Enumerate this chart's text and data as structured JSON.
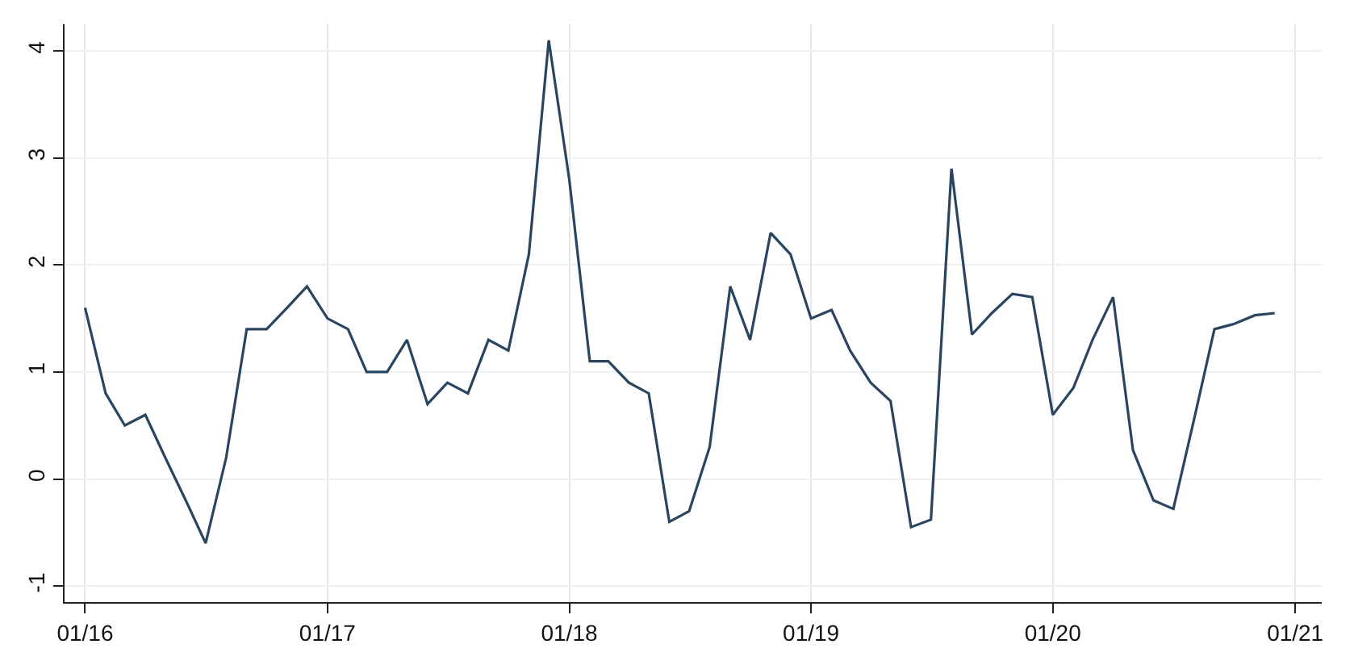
{
  "chart_data": {
    "type": "line",
    "x": [
      "2016-01",
      "2016-02",
      "2016-03",
      "2016-04",
      "2016-05",
      "2016-06",
      "2016-07",
      "2016-08",
      "2016-09",
      "2016-10",
      "2016-11",
      "2016-12",
      "2017-01",
      "2017-02",
      "2017-03",
      "2017-04",
      "2017-05",
      "2017-06",
      "2017-07",
      "2017-08",
      "2017-09",
      "2017-10",
      "2017-11",
      "2017-12",
      "2018-01",
      "2018-02",
      "2018-03",
      "2018-04",
      "2018-05",
      "2018-06",
      "2018-07",
      "2018-08",
      "2018-09",
      "2018-10",
      "2018-11",
      "2018-12",
      "2019-01",
      "2019-02",
      "2019-03",
      "2019-04",
      "2019-05",
      "2019-06",
      "2019-07",
      "2019-08",
      "2019-09",
      "2019-10",
      "2019-11",
      "2019-12",
      "2020-01",
      "2020-02",
      "2020-03",
      "2020-04",
      "2020-05",
      "2020-06",
      "2020-07",
      "2020-08",
      "2020-09",
      "2020-10",
      "2020-11",
      "2020-12"
    ],
    "series": [
      {
        "color": "#2a4560",
        "values": [
          1.6,
          0.8,
          0.5,
          0.6,
          0.2,
          -0.2,
          -0.6,
          0.2,
          1.4,
          1.4,
          1.6,
          1.8,
          1.5,
          1.4,
          1.0,
          1.0,
          1.3,
          0.7,
          0.9,
          0.8,
          1.3,
          1.2,
          2.1,
          4.1,
          2.8,
          1.1,
          1.1,
          0.9,
          0.8,
          -0.4,
          -0.3,
          0.3,
          1.8,
          1.3,
          2.3,
          2.1,
          1.5,
          1.58,
          1.2,
          0.9,
          0.73,
          -0.45,
          -0.38,
          2.9,
          1.35,
          1.55,
          1.73,
          1.7,
          0.6,
          0.85,
          1.3,
          1.7,
          0.27,
          -0.2,
          -0.28,
          0.55,
          1.4,
          1.45,
          1.53,
          1.55
        ]
      }
    ],
    "xlim": [
      "2015-12-01",
      "2021-02-10"
    ],
    "xticks": [
      {
        "value": "2016-01",
        "label": "01/16"
      },
      {
        "value": "2017-01",
        "label": "01/17"
      },
      {
        "value": "2018-01",
        "label": "01/18"
      },
      {
        "value": "2019-01",
        "label": "01/19"
      },
      {
        "value": "2020-01",
        "label": "01/20"
      },
      {
        "value": "2021-01",
        "label": "01/21"
      }
    ],
    "ylim": [
      -1.15,
      4.25
    ],
    "yticks": [
      -1,
      0,
      1,
      2,
      3,
      4
    ],
    "grid": true,
    "line_style": "solid",
    "marker": "none"
  }
}
